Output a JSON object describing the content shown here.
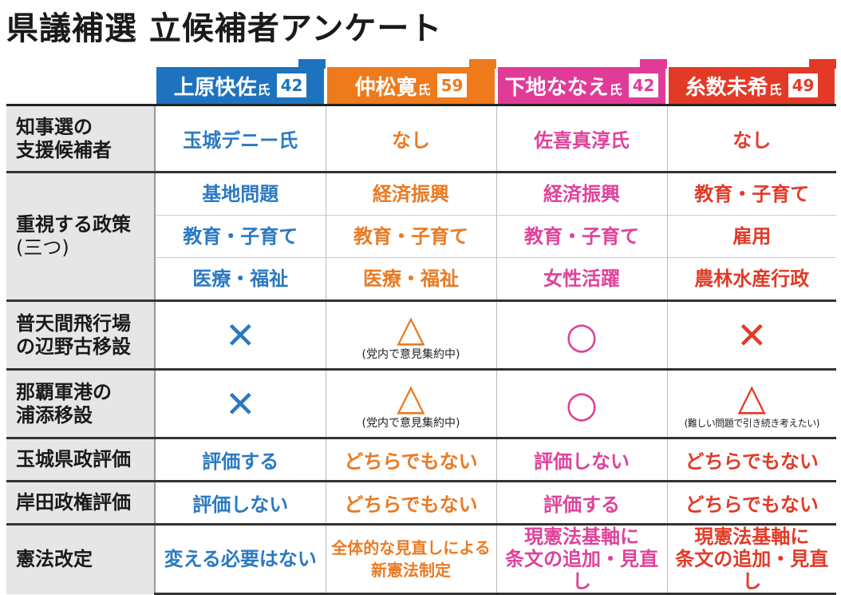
{
  "title": "県議補選 立候補者アンケート",
  "candidates": [
    {
      "name": "上原快佐",
      "suffix": "氏",
      "age": "42"
    },
    {
      "name": "仲松寛",
      "suffix": "氏",
      "age": "59"
    },
    {
      "name": "下地ななえ",
      "suffix": "氏",
      "age": "42"
    },
    {
      "name": "糸数未希",
      "suffix": "氏",
      "age": "49"
    }
  ],
  "rows": {
    "support": {
      "label1": "知事選の",
      "label2": "支援候補者",
      "values": [
        "玉城デニー氏",
        "なし",
        "佐喜真淳氏",
        "なし"
      ]
    },
    "policy": {
      "label1": "重視する政策",
      "label2": "(三つ)",
      "values": [
        [
          "基地問題",
          "教育・子育て",
          "医療・福祉"
        ],
        [
          "経済振興",
          "教育・子育て",
          "医療・福祉"
        ],
        [
          "経済振興",
          "教育・子育て",
          "女性活躍"
        ],
        [
          "教育・子育て",
          "雇用",
          "農林水産行政"
        ]
      ]
    },
    "futenma": {
      "label1": "普天間飛行場",
      "label2": "の辺野古移設",
      "marks": [
        "✕",
        "△",
        "○",
        "✕"
      ],
      "notes": [
        "",
        "(党内で意見集約中)",
        "",
        ""
      ]
    },
    "naha": {
      "label1": "那覇軍港の",
      "label2": "浦添移設",
      "marks": [
        "✕",
        "△",
        "○",
        "△"
      ],
      "notes": [
        "",
        "(党内で意見集約中)",
        "",
        "(難しい問題で引き続き考えたい)"
      ]
    },
    "tamaki": {
      "label": "玉城県政評価",
      "values": [
        "評価する",
        "どちらでもない",
        "評価しない",
        "どちらでもない"
      ]
    },
    "kishida": {
      "label": "岸田政権評価",
      "values": [
        "評価しない",
        "どちらでもない",
        "評価する",
        "どちらでもない"
      ]
    },
    "constitution": {
      "label": "憲法改定",
      "values": [
        [
          "変える必要はない",
          ""
        ],
        [
          "全体的な見直しによる",
          "新憲法制定"
        ],
        [
          "現憲法基軸に",
          "条文の追加・見直し"
        ],
        [
          "現憲法基軸に",
          "条文の追加・見直し"
        ]
      ]
    }
  },
  "colors": {
    "blue": "#1e73be",
    "orange": "#ee7a1c",
    "pink": "#e03c97",
    "red": "#e23a27"
  }
}
